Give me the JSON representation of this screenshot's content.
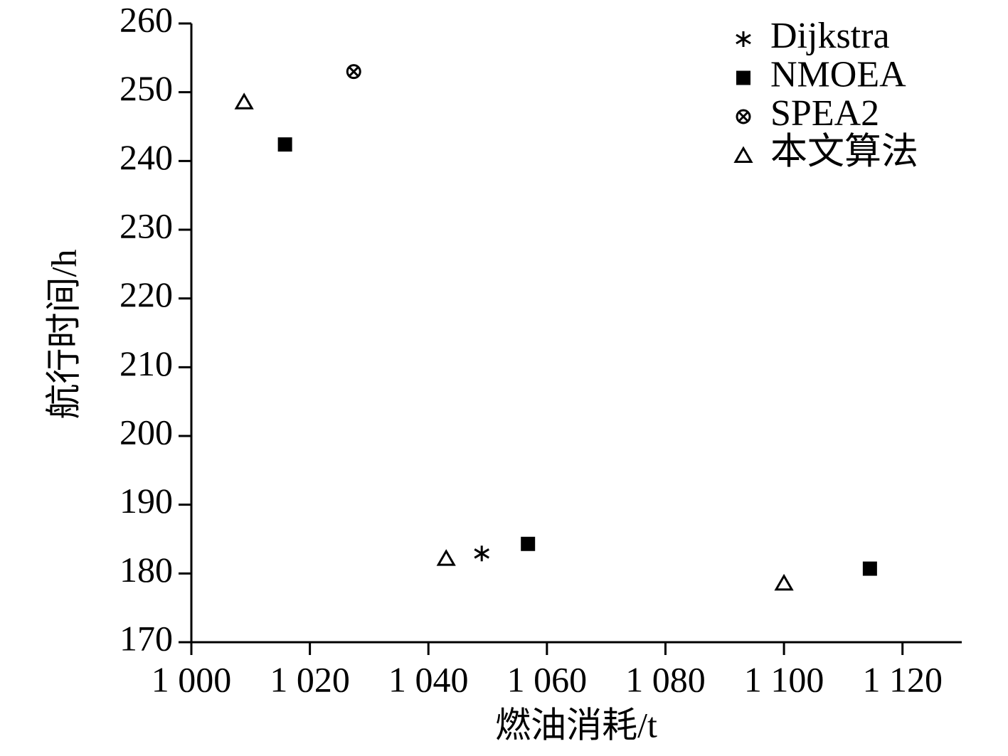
{
  "chart_data": {
    "type": "scatter",
    "x_label": "燃油消耗/t",
    "y_label": "航行时间/h",
    "xlim": [
      1000,
      1130
    ],
    "ylim": [
      170,
      260
    ],
    "xticks": [
      {
        "value": 1000,
        "label": "1 000"
      },
      {
        "value": 1020,
        "label": "1 020"
      },
      {
        "value": 1040,
        "label": "1 040"
      },
      {
        "value": 1060,
        "label": "1 060"
      },
      {
        "value": 1080,
        "label": "1 080"
      },
      {
        "value": 1100,
        "label": "1 100"
      },
      {
        "value": 1120,
        "label": "1 120"
      }
    ],
    "yticks": [
      170,
      180,
      190,
      200,
      210,
      220,
      230,
      240,
      250,
      260
    ],
    "legend": "top-right",
    "series": [
      {
        "name": "Dijkstra",
        "color": "#000000",
        "marker": "asterisk",
        "x": [
          1049
        ],
        "values": [
          182.9
        ]
      },
      {
        "name": "NMOEA",
        "color": "#000000",
        "marker": "square",
        "x": [
          1015.8,
          1056.8,
          1114.5
        ],
        "values": [
          242.4,
          184.3,
          180.7
        ]
      },
      {
        "name": "SPEA2",
        "color": "#000000",
        "marker": "circle-x",
        "x": [
          1027.4
        ],
        "values": [
          253
        ]
      },
      {
        "name": "本文算法",
        "color": "#000000",
        "marker": "triangle",
        "x": [
          1008.9,
          1043,
          1100
        ],
        "values": [
          248.6,
          182.2,
          178.6
        ]
      }
    ]
  }
}
